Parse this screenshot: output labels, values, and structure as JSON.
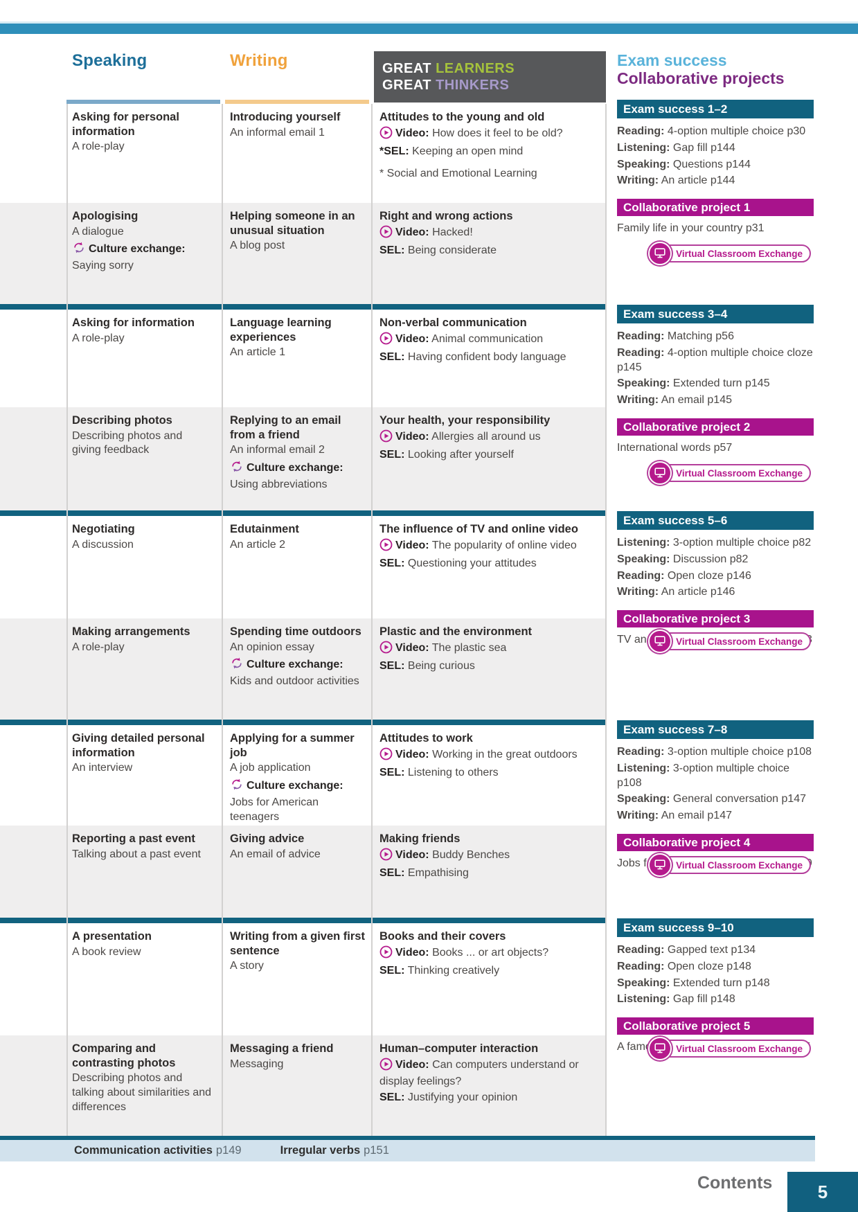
{
  "columns": {
    "speaking": "Speaking",
    "writing": "Writing",
    "glgt": {
      "word1": "GREAT",
      "word2": "LEARNERS",
      "word3": "GREAT",
      "word4": "THINKERS"
    },
    "exam_success": "Exam success",
    "collaborative_projects": "Collaborative projects"
  },
  "rows": [
    {
      "speaking": {
        "title": "Asking for personal information",
        "sub": "A role-play"
      },
      "writing": {
        "title": "Introducing yourself",
        "sub": "An informal email 1"
      },
      "thinkers": {
        "title": "Attitudes to the young and old",
        "video_label": "Video:",
        "video": "How does it feel to be old?",
        "sel_label": "*SEL:",
        "sel": "Keeping an open mind",
        "note": "* Social and Emotional Learning"
      }
    },
    {
      "speaking": {
        "title": "Apologising",
        "sub": "A dialogue",
        "culture_label": "Culture exchange:",
        "culture": "Saying sorry"
      },
      "writing": {
        "title": "Helping someone in an unusual situation",
        "sub": "A blog post"
      },
      "thinkers": {
        "title": "Right and wrong actions",
        "video_label": "Video:",
        "video": "Hacked!",
        "sel_label": "SEL:",
        "sel": "Being considerate"
      }
    },
    {
      "speaking": {
        "title": "Asking for information",
        "sub": "A role-play"
      },
      "writing": {
        "title": "Language learning experiences",
        "sub": "An article 1"
      },
      "thinkers": {
        "title": "Non-verbal communication",
        "video_label": "Video:",
        "video": "Animal communication",
        "sel_label": "SEL:",
        "sel": "Having confident body language"
      }
    },
    {
      "speaking": {
        "title": "Describing photos",
        "sub": "Describing photos and giving feedback"
      },
      "writing": {
        "title": "Replying to an email from a friend",
        "sub": "An informal email 2",
        "culture_label": "Culture exchange:",
        "culture": "Using abbreviations"
      },
      "thinkers": {
        "title": "Your health, your responsibility",
        "video_label": "Video:",
        "video": "Allergies all around us",
        "sel_label": "SEL:",
        "sel": "Looking after yourself"
      }
    },
    {
      "speaking": {
        "title": "Negotiating",
        "sub": "A discussion"
      },
      "writing": {
        "title": "Edutainment",
        "sub": "An article 2"
      },
      "thinkers": {
        "title": "The influence of TV and online video",
        "video_label": "Video:",
        "video": "The popularity of online video",
        "sel_label": "SEL:",
        "sel": "Questioning your attitudes"
      }
    },
    {
      "speaking": {
        "title": "Making arrangements",
        "sub": "A role-play"
      },
      "writing": {
        "title": "Spending time outdoors",
        "sub": "An opinion essay",
        "culture_label": "Culture exchange:",
        "culture": "Kids and outdoor activities"
      },
      "thinkers": {
        "title": "Plastic and the environment",
        "video_label": "Video:",
        "video": "The plastic sea",
        "sel_label": "SEL:",
        "sel": "Being curious"
      }
    },
    {
      "speaking": {
        "title": "Giving detailed personal information",
        "sub": "An interview"
      },
      "writing": {
        "title": "Applying for a summer job",
        "sub": "A job application",
        "culture_label": "Culture exchange:",
        "culture": "Jobs for American teenagers"
      },
      "thinkers": {
        "title": "Attitudes to work",
        "video_label": "Video:",
        "video": "Working in the great outdoors",
        "sel_label": "SEL:",
        "sel": "Listening to others"
      }
    },
    {
      "speaking": {
        "title": "Reporting a past event",
        "sub": "Talking about a past event"
      },
      "writing": {
        "title": "Giving advice",
        "sub": "An email of advice"
      },
      "thinkers": {
        "title": "Making friends",
        "video_label": "Video:",
        "video": "Buddy Benches",
        "sel_label": "SEL:",
        "sel": "Empathising"
      }
    },
    {
      "speaking": {
        "title": "A presentation",
        "sub": "A book review"
      },
      "writing": {
        "title": "Writing from a given first sentence",
        "sub": "A story"
      },
      "thinkers": {
        "title": "Books and their covers",
        "video_label": "Video:",
        "video": "Books ... or art objects?",
        "sel_label": "SEL:",
        "sel": "Thinking creatively"
      }
    },
    {
      "speaking": {
        "title": "Comparing and contrasting photos",
        "sub": "Describing photos and talking about similarities and differences"
      },
      "writing": {
        "title": "Messaging a friend",
        "sub": "Messaging"
      },
      "thinkers": {
        "title": "Human–computer interaction",
        "video_label": "Video:",
        "video": "Can computers understand or display feelings?",
        "sel_label": "SEL:",
        "sel": "Justifying your opinion"
      }
    }
  ],
  "units": [
    {
      "exam_title": "Exam success 1–2",
      "exam_items": [
        {
          "label": "Reading:",
          "text": "4-option multiple choice p30"
        },
        {
          "label": "Listening:",
          "text": "Gap fill p144"
        },
        {
          "label": "Speaking:",
          "text": "Questions p144"
        },
        {
          "label": "Writing:",
          "text": "An article p144"
        }
      ],
      "project_title": "Collaborative project 1",
      "project_text": "Family life in your country p31",
      "badge": "Virtual Classroom Exchange"
    },
    {
      "exam_title": "Exam success 3–4",
      "exam_items": [
        {
          "label": "Reading:",
          "text": "Matching p56"
        },
        {
          "label": "Reading:",
          "text": "4-option multiple choice cloze p145"
        },
        {
          "label": "Speaking:",
          "text": "Extended turn p145"
        },
        {
          "label": "Writing:",
          "text": "An email p145"
        }
      ],
      "project_title": "Collaborative project 2",
      "project_text": "International words p57",
      "badge": "Virtual Classroom Exchange"
    },
    {
      "exam_title": "Exam success 5–6",
      "exam_items": [
        {
          "label": "Listening:",
          "text": "3-option multiple choice p82"
        },
        {
          "label": "Speaking:",
          "text": "Discussion p82"
        },
        {
          "label": "Reading:",
          "text": "Open cloze p146"
        },
        {
          "label": "Writing:",
          "text": "An article p146"
        }
      ],
      "project_title": "Collaborative project 3",
      "project_text": "TV and online video in your country p83",
      "badge": "Virtual Classroom Exchange"
    },
    {
      "exam_title": "Exam success 7–8",
      "exam_items": [
        {
          "label": "Reading:",
          "text": "3-option multiple choice p108"
        },
        {
          "label": "Listening:",
          "text": "3-option multiple choice p108"
        },
        {
          "label": "Speaking:",
          "text": "General conversation p147"
        },
        {
          "label": "Writing:",
          "text": "An email p147"
        }
      ],
      "project_title": "Collaborative project 4",
      "project_text": "Jobs for teenagers in your country p109",
      "badge": "Virtual Classroom Exchange"
    },
    {
      "exam_title": "Exam success 9–10",
      "exam_items": [
        {
          "label": "Reading:",
          "text": "Gapped text p134"
        },
        {
          "label": "Reading:",
          "text": "Open cloze p148"
        },
        {
          "label": "Speaking:",
          "text": "Extended turn p148"
        },
        {
          "label": "Listening:",
          "text": "Gap fill p148"
        }
      ],
      "project_title": "Collaborative project 5",
      "project_text": "A famous writer from your country p135",
      "badge": "Virtual Classroom Exchange"
    }
  ],
  "footer": {
    "communication_label": "Communication activities",
    "communication_page": "p149",
    "irregular_label": "Irregular verbs",
    "irregular_page": "p151",
    "contents_label": "Contents",
    "page_number": "5"
  },
  "colors": {
    "topbar_blue": "#2e8fba",
    "speaking_teal": "#1d6f99",
    "writing_orange": "#f0a23c",
    "exam_header_blue": "#5ab3da",
    "collab_header_purple": "#7c2a81",
    "exam_bar_teal": "#11627f",
    "project_bar_magenta": "#a8138c",
    "icon_magenta": "#b5198c",
    "learners_green": "#a5c23c",
    "thinkers_lavender": "#a79aca",
    "row_grey": "#efeeee",
    "footer_blue": "#d2e2ed"
  }
}
